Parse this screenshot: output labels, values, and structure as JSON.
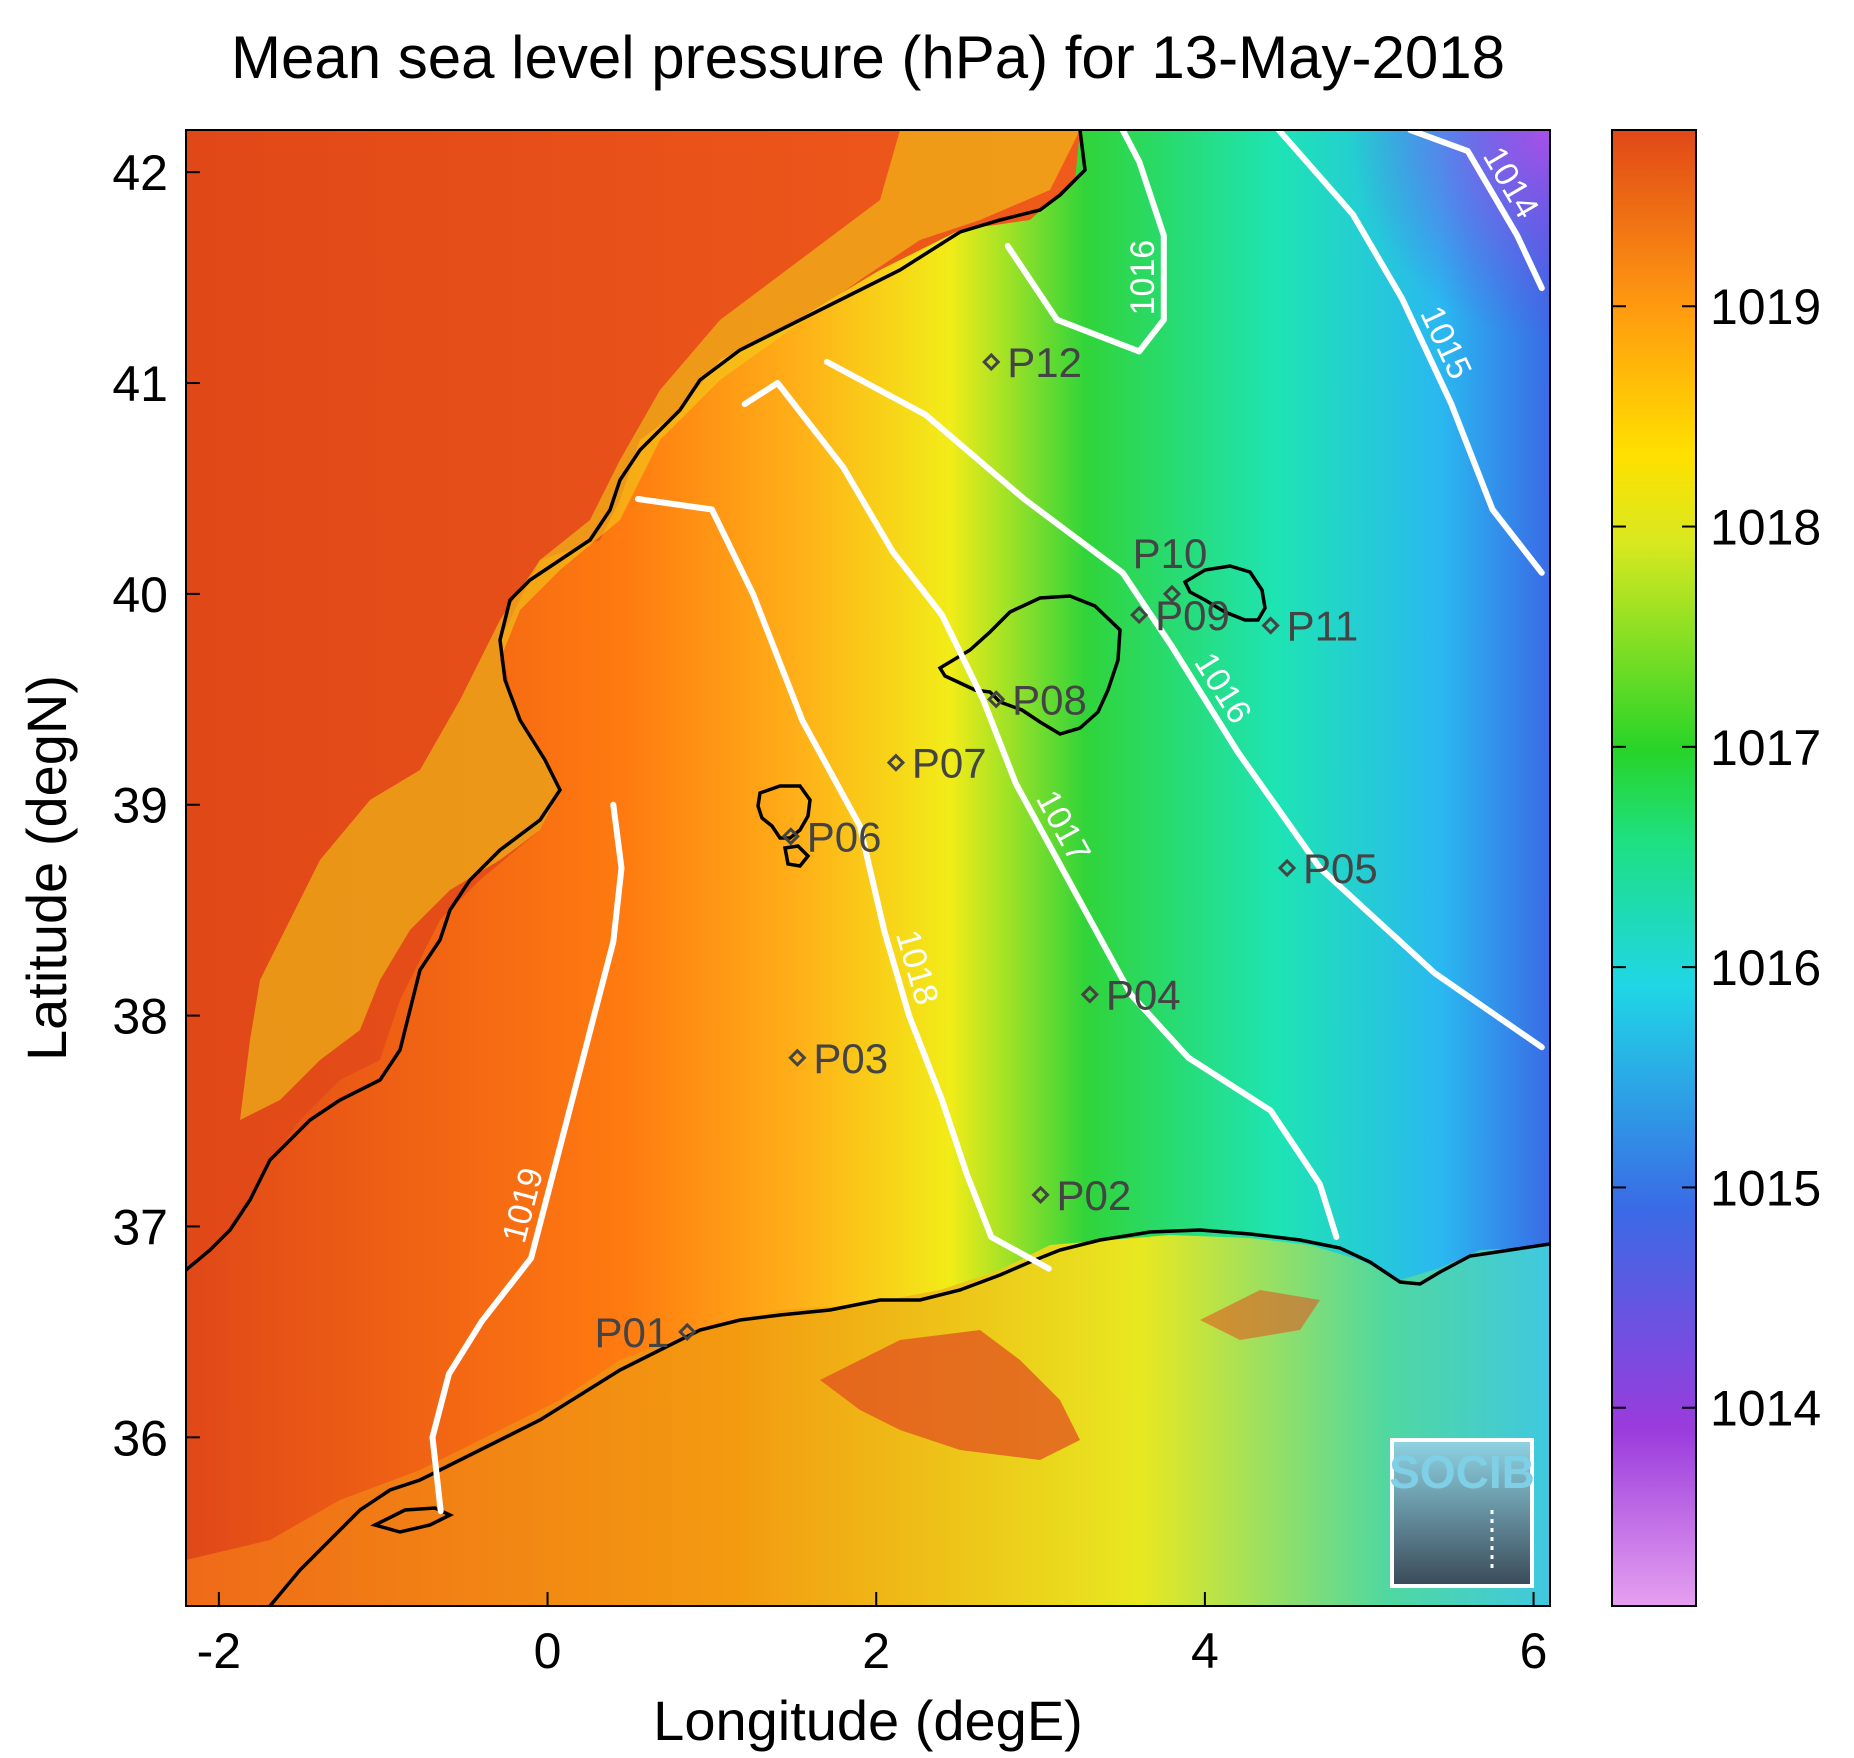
{
  "chart_data": {
    "type": "heatmap",
    "title": "Mean sea level pressure (hPa) for 13-May-2018",
    "xlabel": "Longitude (degE)",
    "ylabel": "Latitude (degN)",
    "xlim": [
      -2.2,
      6.1
    ],
    "ylim": [
      35.2,
      42.2
    ],
    "xticks": [
      -2,
      0,
      2,
      4,
      6
    ],
    "yticks": [
      36,
      37,
      38,
      39,
      40,
      41,
      42
    ],
    "colorbar": {
      "range": [
        1013.1,
        1019.8
      ],
      "ticks": [
        1014,
        1015,
        1016,
        1017,
        1018,
        1019
      ],
      "colormap": [
        "#e6a0f0",
        "#9a3bdc",
        "#3a6be6",
        "#20d6e6",
        "#1ee080",
        "#28d428",
        "#d8e820",
        "#ffe000",
        "#ff9a10",
        "#e04818"
      ]
    },
    "contours": [
      {
        "level": "1019",
        "points": [
          [
            -0.65,
            35.65
          ],
          [
            -0.7,
            36.0
          ],
          [
            -0.6,
            36.3
          ],
          [
            -0.4,
            36.55
          ],
          [
            -0.1,
            36.85
          ],
          [
            0.05,
            37.3
          ],
          [
            0.25,
            37.9
          ],
          [
            0.4,
            38.35
          ],
          [
            0.45,
            38.7
          ],
          [
            0.4,
            39.0
          ]
        ]
      },
      {
        "level": "1018",
        "points": [
          [
            0.55,
            40.45
          ],
          [
            1.0,
            40.4
          ],
          [
            1.25,
            40.0
          ],
          [
            1.55,
            39.4
          ],
          [
            1.9,
            38.9
          ],
          [
            2.05,
            38.4
          ],
          [
            2.2,
            38.0
          ],
          [
            2.4,
            37.6
          ],
          [
            2.55,
            37.25
          ],
          [
            2.7,
            36.95
          ],
          [
            3.05,
            36.8
          ]
        ]
      },
      {
        "level": "1017",
        "points": [
          [
            1.2,
            40.9
          ],
          [
            1.4,
            41.0
          ],
          [
            1.8,
            40.6
          ],
          [
            2.1,
            40.2
          ],
          [
            2.4,
            39.9
          ],
          [
            2.65,
            39.5
          ],
          [
            2.85,
            39.1
          ],
          [
            3.2,
            38.6
          ],
          [
            3.55,
            38.1
          ],
          [
            3.9,
            37.8
          ],
          [
            4.4,
            37.55
          ],
          [
            4.7,
            37.2
          ],
          [
            4.8,
            36.95
          ]
        ]
      },
      {
        "level": "1016",
        "points": [
          [
            1.7,
            41.1
          ],
          [
            2.3,
            40.85
          ],
          [
            2.9,
            40.45
          ],
          [
            3.5,
            40.1
          ],
          [
            3.8,
            39.75
          ],
          [
            4.2,
            39.25
          ],
          [
            4.7,
            38.7
          ],
          [
            5.4,
            38.2
          ],
          [
            6.05,
            37.85
          ]
        ]
      },
      {
        "level": "1016",
        "points": [
          [
            2.8,
            41.65
          ],
          [
            3.1,
            41.3
          ],
          [
            3.6,
            41.15
          ],
          [
            3.75,
            41.3
          ],
          [
            3.75,
            41.7
          ],
          [
            3.6,
            42.05
          ],
          [
            3.5,
            42.2
          ]
        ]
      },
      {
        "level": "1015",
        "points": [
          [
            4.45,
            42.2
          ],
          [
            4.9,
            41.8
          ],
          [
            5.2,
            41.4
          ],
          [
            5.5,
            40.9
          ],
          [
            5.75,
            40.4
          ],
          [
            6.05,
            40.1
          ]
        ]
      },
      {
        "level": "1014",
        "points": [
          [
            5.25,
            42.2
          ],
          [
            5.6,
            42.1
          ],
          [
            5.9,
            41.7
          ],
          [
            6.05,
            41.45
          ]
        ]
      }
    ],
    "stations": [
      {
        "name": "P01",
        "lon": 0.85,
        "lat": 36.5
      },
      {
        "name": "P02",
        "lon": 3.0,
        "lat": 37.15
      },
      {
        "name": "P03",
        "lon": 1.52,
        "lat": 37.8
      },
      {
        "name": "P04",
        "lon": 3.3,
        "lat": 38.1
      },
      {
        "name": "P05",
        "lon": 4.5,
        "lat": 38.7
      },
      {
        "name": "P06",
        "lon": 1.48,
        "lat": 38.85
      },
      {
        "name": "P07",
        "lon": 2.12,
        "lat": 39.2
      },
      {
        "name": "P08",
        "lon": 2.73,
        "lat": 39.5
      },
      {
        "name": "P09",
        "lon": 3.6,
        "lat": 39.9
      },
      {
        "name": "P10",
        "lon": 3.8,
        "lat": 40.0
      },
      {
        "name": "P11",
        "lon": 4.4,
        "lat": 39.85
      },
      {
        "name": "P12",
        "lon": 2.7,
        "lat": 41.1
      }
    ]
  },
  "logo": {
    "text": "SOCIB",
    "icon": "socib-logo"
  }
}
